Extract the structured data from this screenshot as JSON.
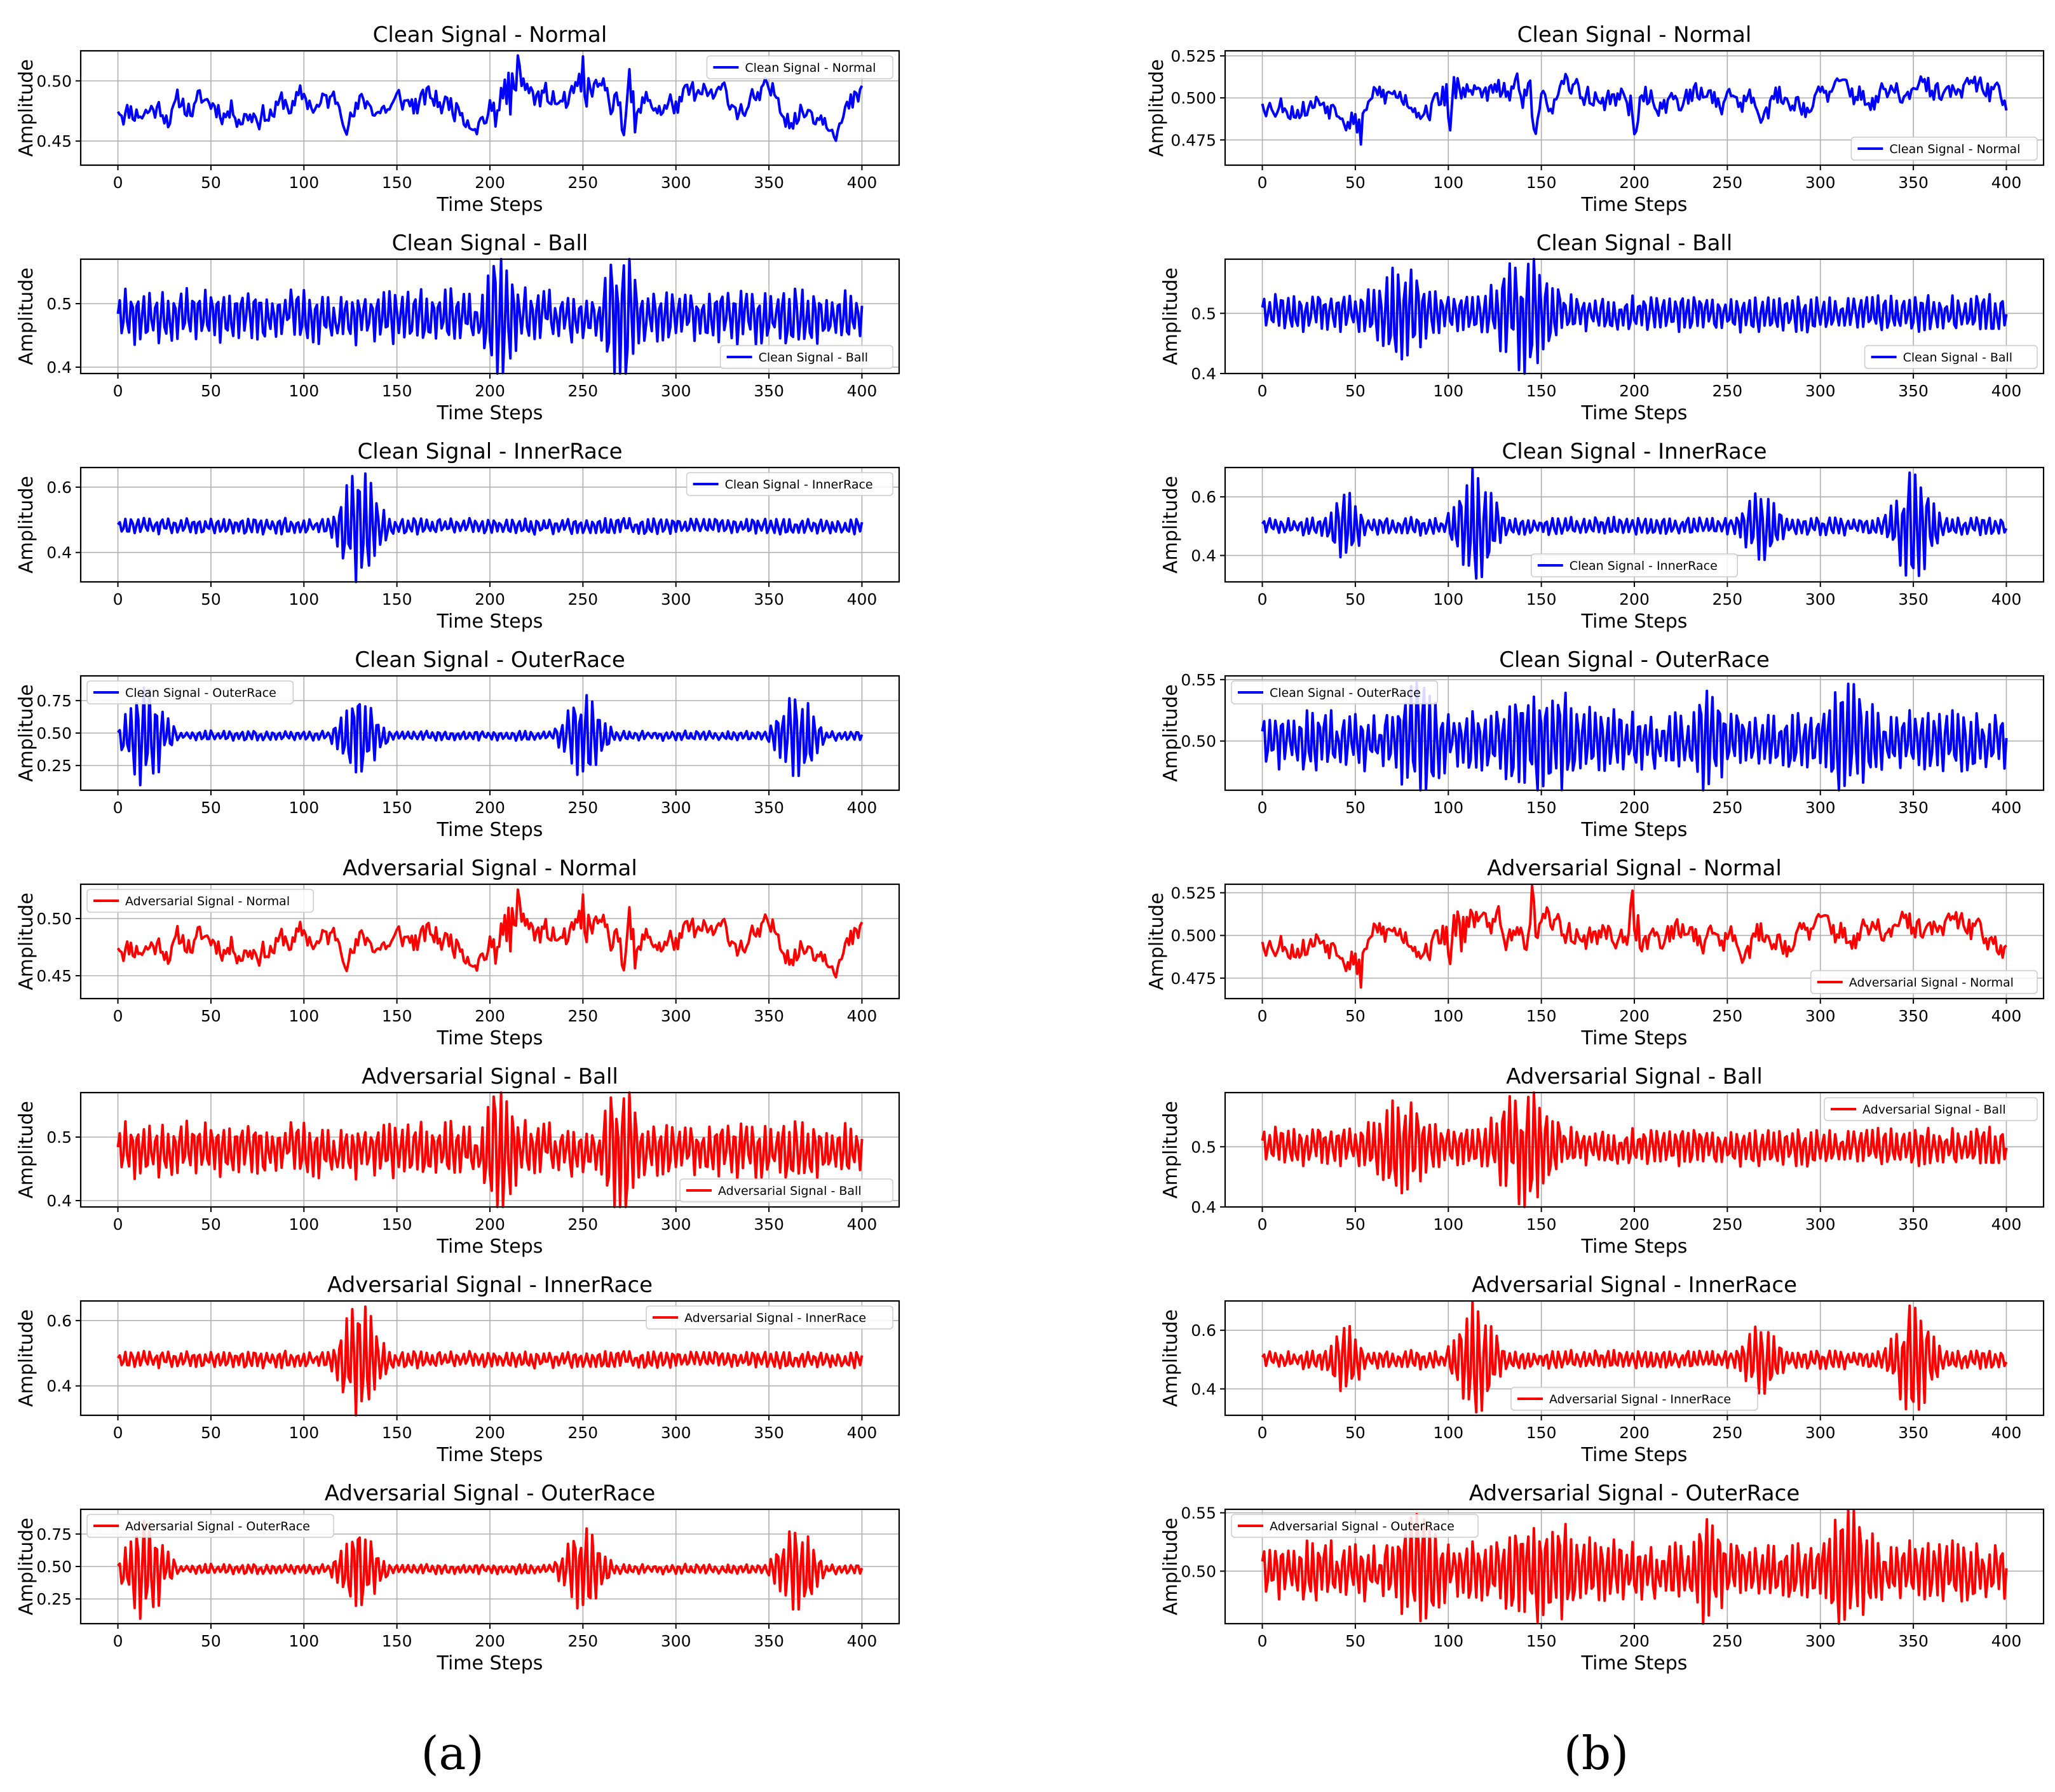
{
  "figure": {
    "captions": [
      "(a)",
      "(b)"
    ]
  },
  "chart_data": [
    {
      "panel": "a",
      "type": "line",
      "title": "Clean Signal - Normal",
      "xlabel": "Time Steps",
      "ylabel": "Amplitude",
      "xlim": [
        -20,
        420
      ],
      "ylim": [
        0.43,
        0.525
      ],
      "xticks": [
        0,
        50,
        100,
        150,
        200,
        250,
        300,
        350,
        400
      ],
      "yticks": [
        0.45,
        0.5
      ],
      "ytick_labels": [
        "0.45",
        "0.50"
      ],
      "grid": true,
      "legend": "upper right",
      "color": "#0000ff",
      "series": [
        {
          "name": "Clean Signal - Normal",
          "baseline": 0.48,
          "amplitude": 0.018,
          "seed": 11,
          "smooth": true,
          "events": [
            [
              200,
              225,
              0.025
            ],
            [
              245,
              255,
              0.04
            ],
            [
              265,
              285,
              0.025
            ]
          ]
        }
      ]
    },
    {
      "panel": "a",
      "type": "line",
      "title": "Clean Signal - Ball",
      "xlabel": "Time Steps",
      "ylabel": "Amplitude",
      "xlim": [
        -20,
        420
      ],
      "ylim": [
        0.39,
        0.57
      ],
      "xticks": [
        0,
        50,
        100,
        150,
        200,
        250,
        300,
        350,
        400
      ],
      "yticks": [
        0.4,
        0.5
      ],
      "ytick_labels": [
        "0.4",
        "0.5"
      ],
      "grid": true,
      "legend": "lower right",
      "color": "#0000ff",
      "series": [
        {
          "name": "Clean Signal - Ball",
          "baseline": 0.48,
          "amplitude": 0.035,
          "seed": 23,
          "smooth": false,
          "events": [
            [
              195,
              215,
              0.07
            ],
            [
              260,
              280,
              0.08
            ]
          ]
        }
      ]
    },
    {
      "panel": "a",
      "type": "line",
      "title": "Clean Signal - InnerRace",
      "xlabel": "Time Steps",
      "ylabel": "Amplitude",
      "xlim": [
        -20,
        420
      ],
      "ylim": [
        0.31,
        0.66
      ],
      "xticks": [
        0,
        50,
        100,
        150,
        200,
        250,
        300,
        350,
        400
      ],
      "yticks": [
        0.4,
        0.6
      ],
      "ytick_labels": [
        "0.4",
        "0.6"
      ],
      "grid": true,
      "legend": "upper right",
      "color": "#0000ff",
      "series": [
        {
          "name": "Clean Signal - InnerRace",
          "baseline": 0.48,
          "amplitude": 0.02,
          "seed": 37,
          "smooth": false,
          "events": [
            [
              115,
              145,
              0.16
            ]
          ]
        }
      ]
    },
    {
      "panel": "a",
      "type": "line",
      "title": "Clean Signal - OuterRace",
      "xlabel": "Time Steps",
      "ylabel": "Amplitude",
      "xlim": [
        -20,
        420
      ],
      "ylim": [
        0.06,
        0.94
      ],
      "xticks": [
        0,
        50,
        100,
        150,
        200,
        250,
        300,
        350,
        400
      ],
      "yticks": [
        0.25,
        0.5,
        0.75
      ],
      "ytick_labels": [
        "0.25",
        "0.50",
        "0.75"
      ],
      "grid": true,
      "legend": "upper left",
      "color": "#0000ff",
      "series": [
        {
          "name": "Clean Signal - OuterRace",
          "baseline": 0.48,
          "amplitude": 0.03,
          "seed": 41,
          "smooth": false,
          "events": [
            [
              0,
              30,
              0.38
            ],
            [
              115,
              145,
              0.27
            ],
            [
              235,
              265,
              0.3
            ],
            [
              350,
              380,
              0.3
            ]
          ]
        }
      ]
    },
    {
      "panel": "a",
      "type": "line",
      "title": "Adversarial Signal - Normal",
      "xlabel": "Time Steps",
      "ylabel": "Amplitude",
      "xlim": [
        -20,
        420
      ],
      "ylim": [
        0.43,
        0.53
      ],
      "xticks": [
        0,
        50,
        100,
        150,
        200,
        250,
        300,
        350,
        400
      ],
      "yticks": [
        0.45,
        0.5
      ],
      "ytick_labels": [
        "0.45",
        "0.50"
      ],
      "grid": true,
      "legend": "upper left",
      "color": "#ff0000",
      "series": [
        {
          "name": "Adversarial Signal - Normal",
          "baseline": 0.48,
          "amplitude": 0.019,
          "seed": 11,
          "smooth": true,
          "events": [
            [
              200,
              225,
              0.028
            ],
            [
              245,
              255,
              0.04
            ],
            [
              265,
              285,
              0.025
            ]
          ]
        }
      ]
    },
    {
      "panel": "a",
      "type": "line",
      "title": "Adversarial Signal - Ball",
      "xlabel": "Time Steps",
      "ylabel": "Amplitude",
      "xlim": [
        -20,
        420
      ],
      "ylim": [
        0.39,
        0.57
      ],
      "xticks": [
        0,
        50,
        100,
        150,
        200,
        250,
        300,
        350,
        400
      ],
      "yticks": [
        0.4,
        0.5
      ],
      "ytick_labels": [
        "0.4",
        "0.5"
      ],
      "grid": true,
      "legend": "lower right",
      "color": "#ff0000",
      "series": [
        {
          "name": "Adversarial Signal - Ball",
          "baseline": 0.48,
          "amplitude": 0.036,
          "seed": 23,
          "smooth": false,
          "events": [
            [
              195,
              215,
              0.075
            ],
            [
              260,
              280,
              0.08
            ]
          ]
        }
      ]
    },
    {
      "panel": "a",
      "type": "line",
      "title": "Adversarial Signal - InnerRace",
      "xlabel": "Time Steps",
      "ylabel": "Amplitude",
      "xlim": [
        -20,
        420
      ],
      "ylim": [
        0.31,
        0.66
      ],
      "xticks": [
        0,
        50,
        100,
        150,
        200,
        250,
        300,
        350,
        400
      ],
      "yticks": [
        0.4,
        0.6
      ],
      "ytick_labels": [
        "0.4",
        "0.6"
      ],
      "grid": true,
      "legend": "upper right",
      "color": "#ff0000",
      "series": [
        {
          "name": "Adversarial Signal - InnerRace",
          "baseline": 0.48,
          "amplitude": 0.021,
          "seed": 37,
          "smooth": false,
          "events": [
            [
              115,
              145,
              0.16
            ]
          ]
        }
      ]
    },
    {
      "panel": "a",
      "type": "line",
      "title": "Adversarial Signal - OuterRace",
      "xlabel": "Time Steps",
      "ylabel": "Amplitude",
      "xlim": [
        -20,
        420
      ],
      "ylim": [
        0.06,
        0.94
      ],
      "xticks": [
        0,
        50,
        100,
        150,
        200,
        250,
        300,
        350,
        400
      ],
      "yticks": [
        0.25,
        0.5,
        0.75
      ],
      "ytick_labels": [
        "0.25",
        "0.50",
        "0.75"
      ],
      "grid": true,
      "legend": "upper left",
      "color": "#ff0000",
      "series": [
        {
          "name": "Adversarial Signal - OuterRace",
          "baseline": 0.48,
          "amplitude": 0.031,
          "seed": 41,
          "smooth": false,
          "events": [
            [
              0,
              30,
              0.38
            ],
            [
              115,
              145,
              0.27
            ],
            [
              235,
              265,
              0.3
            ],
            [
              350,
              380,
              0.3
            ]
          ]
        }
      ]
    },
    {
      "panel": "b",
      "type": "line",
      "title": "Clean Signal - Normal",
      "xlabel": "Time Steps",
      "ylabel": "Amplitude",
      "xlim": [
        -20,
        420
      ],
      "ylim": [
        0.46,
        0.528
      ],
      "xticks": [
        0,
        50,
        100,
        150,
        200,
        250,
        300,
        350,
        400
      ],
      "yticks": [
        0.475,
        0.5,
        0.525
      ],
      "ytick_labels": [
        "0.475",
        "0.500",
        "0.525"
      ],
      "grid": true,
      "legend": "lower right",
      "color": "#0000ff",
      "series": [
        {
          "name": "Clean Signal - Normal",
          "baseline": 0.5,
          "amplitude": 0.012,
          "seed": 53,
          "smooth": true,
          "events": [
            [
              45,
              60,
              0.02
            ],
            [
              95,
              110,
              0.018
            ],
            [
              140,
              150,
              0.02
            ],
            [
              195,
              205,
              0.02
            ]
          ]
        }
      ]
    },
    {
      "panel": "b",
      "type": "line",
      "title": "Clean Signal - Ball",
      "xlabel": "Time Steps",
      "ylabel": "Amplitude",
      "xlim": [
        -20,
        420
      ],
      "ylim": [
        0.4,
        0.59
      ],
      "xticks": [
        0,
        50,
        100,
        150,
        200,
        250,
        300,
        350,
        400
      ],
      "yticks": [
        0.4,
        0.5
      ],
      "ytick_labels": [
        "0.4",
        "0.5"
      ],
      "grid": true,
      "legend": "lower right",
      "color": "#0000ff",
      "series": [
        {
          "name": "Clean Signal - Ball",
          "baseline": 0.5,
          "amplitude": 0.025,
          "seed": 61,
          "smooth": false,
          "events": [
            [
              55,
              95,
              0.055
            ],
            [
              120,
              160,
              0.075
            ]
          ]
        }
      ]
    },
    {
      "panel": "b",
      "type": "line",
      "title": "Clean Signal - InnerRace",
      "xlabel": "Time Steps",
      "ylabel": "Amplitude",
      "xlim": [
        -20,
        420
      ],
      "ylim": [
        0.31,
        0.7
      ],
      "xticks": [
        0,
        50,
        100,
        150,
        200,
        250,
        300,
        350,
        400
      ],
      "yticks": [
        0.4,
        0.6
      ],
      "ytick_labels": [
        "0.4",
        "0.6"
      ],
      "grid": true,
      "legend": "lower center",
      "color": "#0000ff",
      "series": [
        {
          "name": "Clean Signal - InnerRace",
          "baseline": 0.5,
          "amplitude": 0.025,
          "seed": 71,
          "smooth": false,
          "events": [
            [
              35,
              55,
              0.1
            ],
            [
              100,
              130,
              0.17
            ],
            [
              255,
              280,
              0.1
            ],
            [
              335,
              365,
              0.16
            ]
          ]
        }
      ]
    },
    {
      "panel": "b",
      "type": "line",
      "title": "Clean Signal - OuterRace",
      "xlabel": "Time Steps",
      "ylabel": "Amplitude",
      "xlim": [
        -20,
        420
      ],
      "ylim": [
        0.46,
        0.553
      ],
      "xticks": [
        0,
        50,
        100,
        150,
        200,
        250,
        300,
        350,
        400
      ],
      "yticks": [
        0.5,
        0.55
      ],
      "ytick_labels": [
        "0.50",
        "0.55"
      ],
      "grid": true,
      "legend": "upper left",
      "color": "#0000ff",
      "series": [
        {
          "name": "Clean Signal - OuterRace",
          "baseline": 0.5,
          "amplitude": 0.02,
          "seed": 83,
          "smooth": false,
          "events": [
            [
              70,
              100,
              0.025
            ],
            [
              120,
              180,
              0.022
            ],
            [
              230,
              250,
              0.025
            ],
            [
              300,
              330,
              0.025
            ]
          ]
        }
      ]
    },
    {
      "panel": "b",
      "type": "line",
      "title": "Adversarial Signal - Normal",
      "xlabel": "Time Steps",
      "ylabel": "Amplitude",
      "xlim": [
        -20,
        420
      ],
      "ylim": [
        0.463,
        0.53
      ],
      "xticks": [
        0,
        50,
        100,
        150,
        200,
        250,
        300,
        350,
        400
      ],
      "yticks": [
        0.475,
        0.5,
        0.525
      ],
      "ytick_labels": [
        "0.475",
        "0.500",
        "0.525"
      ],
      "grid": true,
      "legend": "lower right",
      "color": "#ff0000",
      "series": [
        {
          "name": "Adversarial Signal - Normal",
          "baseline": 0.5,
          "amplitude": 0.013,
          "seed": 53,
          "smooth": true,
          "events": [
            [
              45,
              60,
              0.022
            ],
            [
              95,
              120,
              0.02
            ],
            [
              140,
              150,
              0.02
            ],
            [
              195,
              205,
              0.022
            ]
          ]
        }
      ]
    },
    {
      "panel": "b",
      "type": "line",
      "title": "Adversarial Signal - Ball",
      "xlabel": "Time Steps",
      "ylabel": "Amplitude",
      "xlim": [
        -20,
        420
      ],
      "ylim": [
        0.4,
        0.59
      ],
      "xticks": [
        0,
        50,
        100,
        150,
        200,
        250,
        300,
        350,
        400
      ],
      "yticks": [
        0.4,
        0.5
      ],
      "ytick_labels": [
        "0.4",
        "0.5"
      ],
      "grid": true,
      "legend": "upper right",
      "color": "#ff0000",
      "series": [
        {
          "name": "Adversarial Signal - Ball",
          "baseline": 0.5,
          "amplitude": 0.026,
          "seed": 61,
          "smooth": false,
          "events": [
            [
              55,
              95,
              0.055
            ],
            [
              120,
              160,
              0.075
            ]
          ]
        }
      ]
    },
    {
      "panel": "b",
      "type": "line",
      "title": "Adversarial Signal - InnerRace",
      "xlabel": "Time Steps",
      "ylabel": "Amplitude",
      "xlim": [
        -20,
        420
      ],
      "ylim": [
        0.31,
        0.7
      ],
      "xticks": [
        0,
        50,
        100,
        150,
        200,
        250,
        300,
        350,
        400
      ],
      "yticks": [
        0.4,
        0.6
      ],
      "ytick_labels": [
        "0.4",
        "0.6"
      ],
      "grid": true,
      "legend": "lower center",
      "color": "#ff0000",
      "series": [
        {
          "name": "Adversarial Signal - InnerRace",
          "baseline": 0.5,
          "amplitude": 0.026,
          "seed": 71,
          "smooth": false,
          "events": [
            [
              35,
              55,
              0.1
            ],
            [
              100,
              130,
              0.17
            ],
            [
              255,
              280,
              0.1
            ],
            [
              335,
              365,
              0.16
            ]
          ]
        }
      ]
    },
    {
      "panel": "b",
      "type": "line",
      "title": "Adversarial Signal - OuterRace",
      "xlabel": "Time Steps",
      "ylabel": "Amplitude",
      "xlim": [
        -20,
        420
      ],
      "ylim": [
        0.455,
        0.553
      ],
      "xticks": [
        0,
        50,
        100,
        150,
        200,
        250,
        300,
        350,
        400
      ],
      "yticks": [
        0.5,
        0.55
      ],
      "ytick_labels": [
        "0.50",
        "0.55"
      ],
      "grid": true,
      "legend": "upper left",
      "color": "#ff0000",
      "series": [
        {
          "name": "Adversarial Signal - OuterRace",
          "baseline": 0.5,
          "amplitude": 0.021,
          "seed": 83,
          "smooth": false,
          "events": [
            [
              70,
              100,
              0.025
            ],
            [
              120,
              180,
              0.022
            ],
            [
              230,
              250,
              0.028
            ],
            [
              300,
              330,
              0.03
            ]
          ]
        }
      ]
    }
  ]
}
